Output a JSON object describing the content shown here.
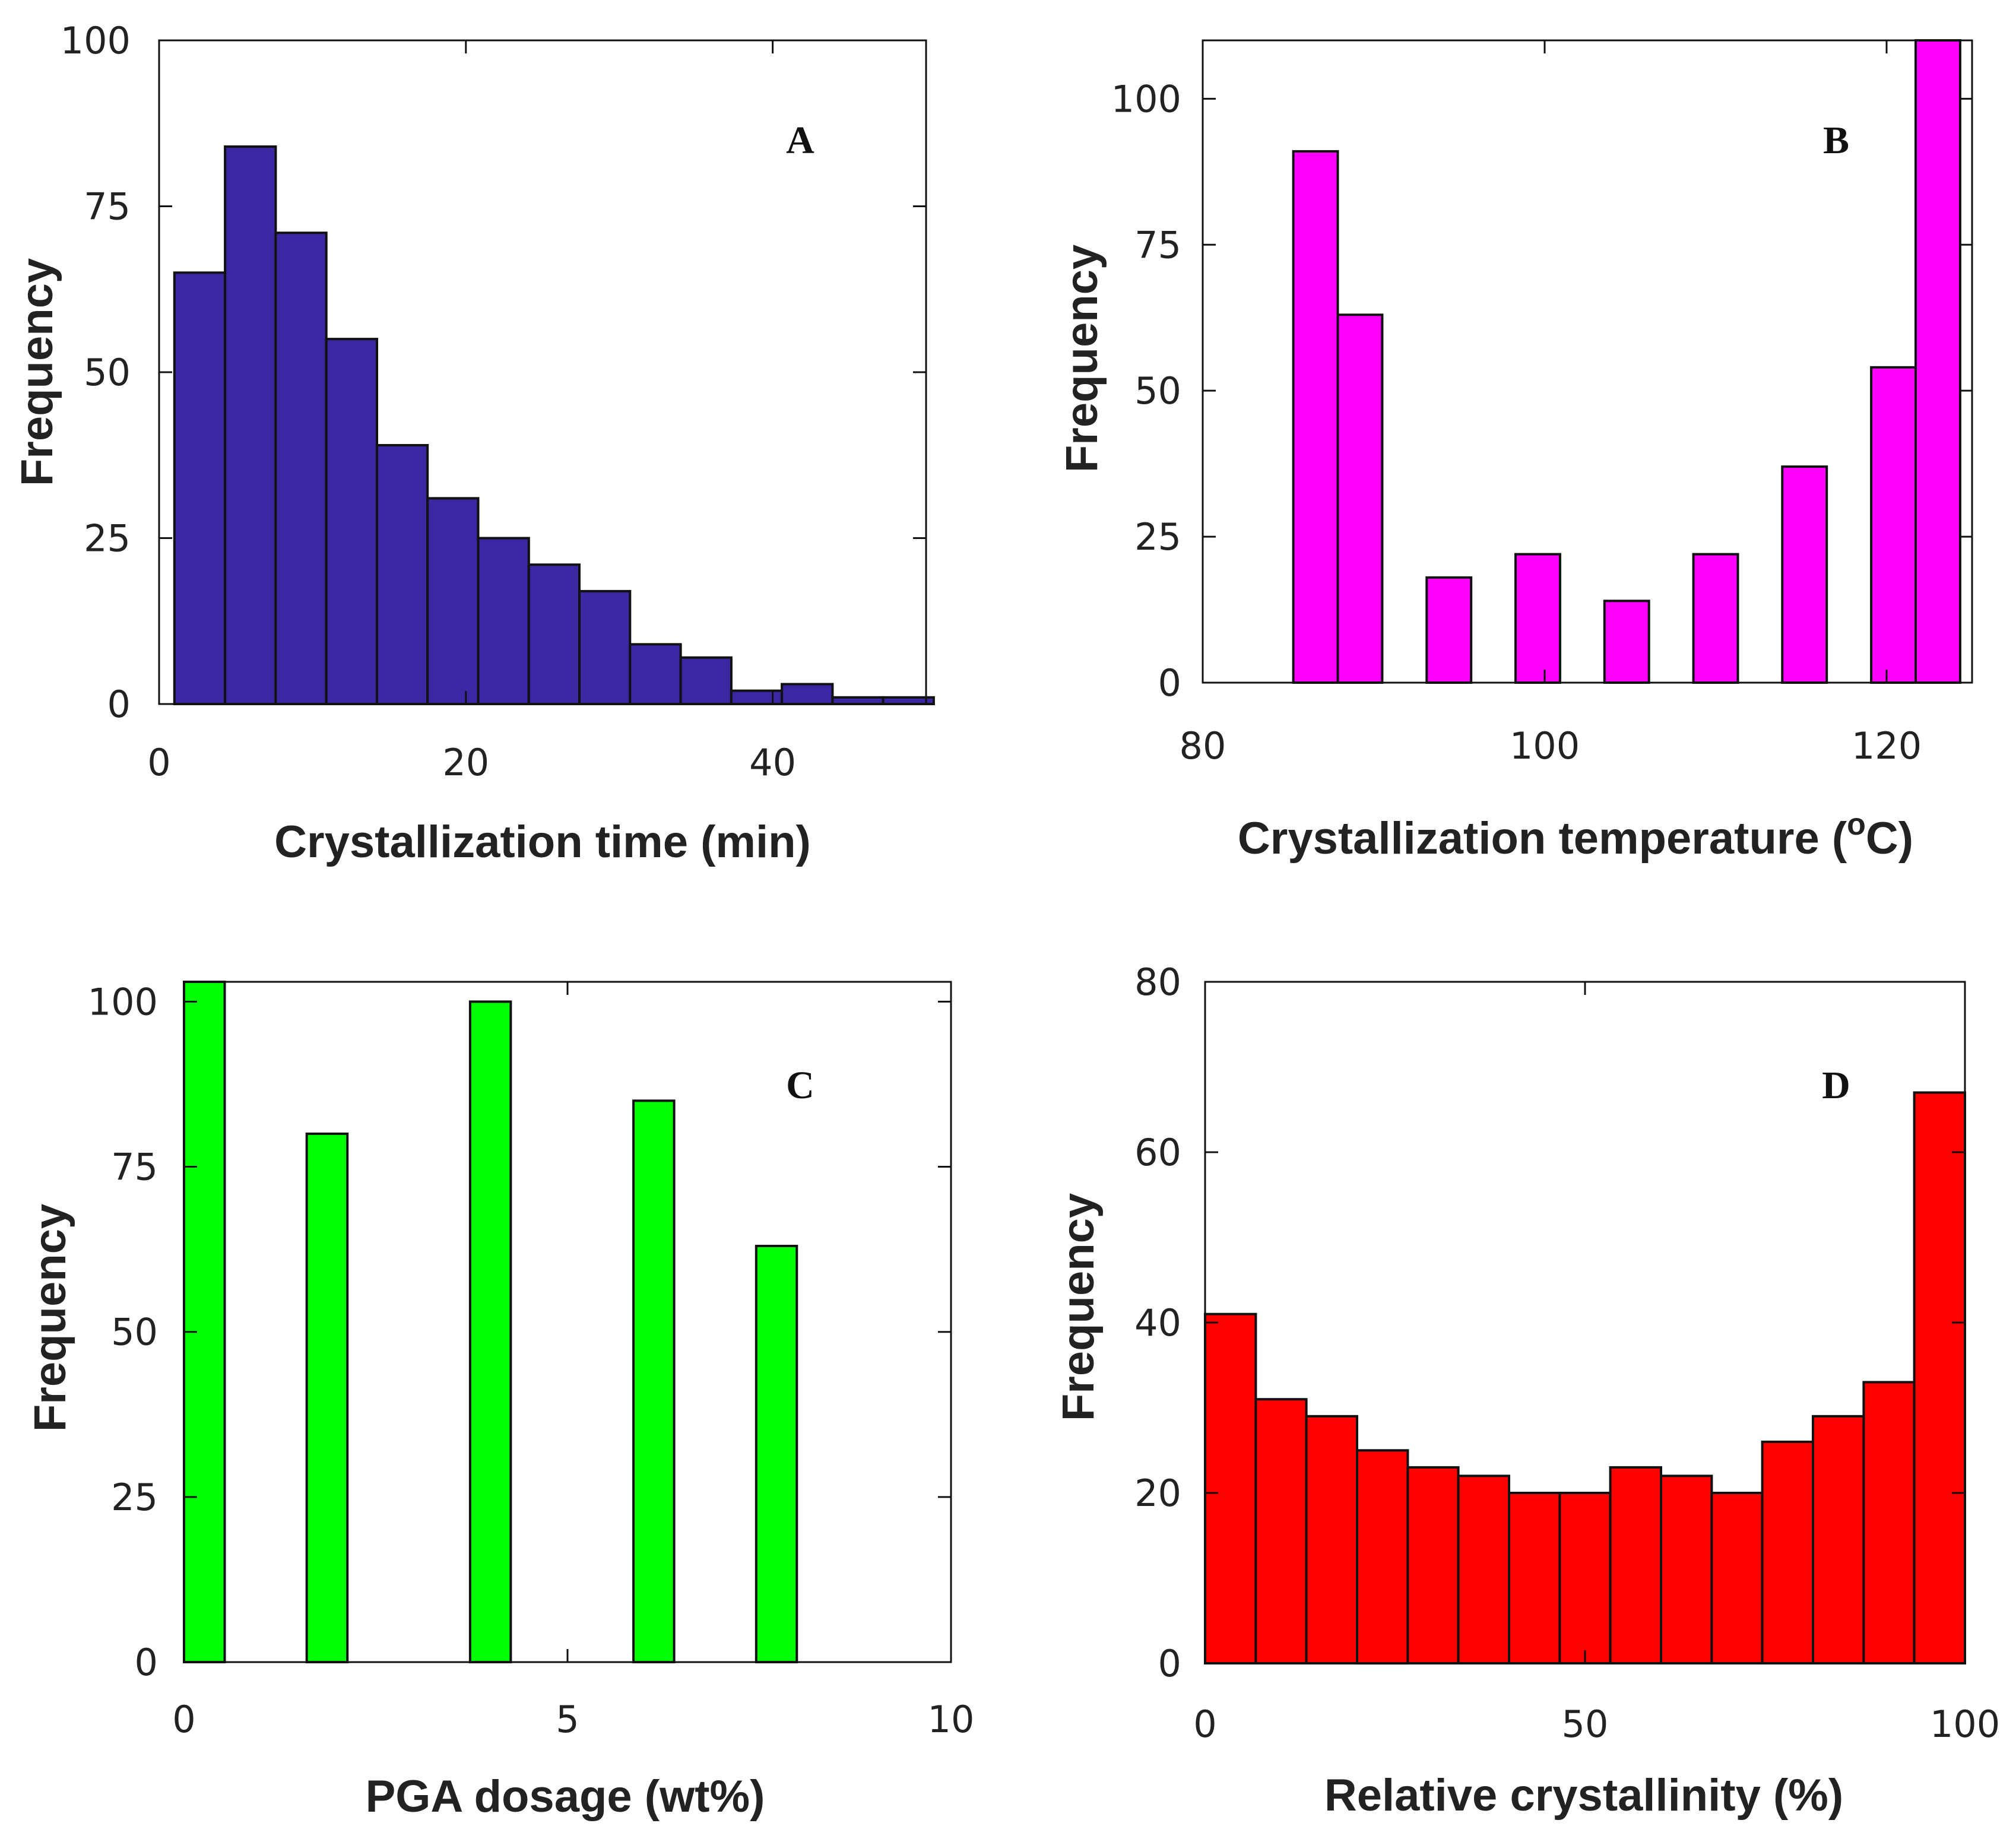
{
  "chart_data": [
    {
      "id": "A",
      "type": "bar",
      "panel_label": "A",
      "color": "#3b27a2",
      "xlabel": "Crystallization time (min)",
      "ylabel": "Frequency",
      "xlim": [
        0,
        50
      ],
      "ylim": [
        0,
        100
      ],
      "xticks": [
        0,
        20,
        40
      ],
      "yticks": [
        0,
        25,
        50,
        75,
        100
      ],
      "bins": [
        {
          "x0": 1.0,
          "x1": 4.3,
          "value": 65
        },
        {
          "x0": 4.3,
          "x1": 7.6,
          "value": 84
        },
        {
          "x0": 7.6,
          "x1": 10.9,
          "value": 71
        },
        {
          "x0": 10.9,
          "x1": 14.2,
          "value": 55
        },
        {
          "x0": 14.2,
          "x1": 17.5,
          "value": 39
        },
        {
          "x0": 17.5,
          "x1": 20.8,
          "value": 31
        },
        {
          "x0": 20.8,
          "x1": 24.1,
          "value": 25
        },
        {
          "x0": 24.1,
          "x1": 27.4,
          "value": 21
        },
        {
          "x0": 27.4,
          "x1": 30.7,
          "value": 17
        },
        {
          "x0": 30.7,
          "x1": 34.0,
          "value": 9
        },
        {
          "x0": 34.0,
          "x1": 37.3,
          "value": 7
        },
        {
          "x0": 37.3,
          "x1": 40.6,
          "value": 2
        },
        {
          "x0": 40.6,
          "x1": 43.9,
          "value": 3
        },
        {
          "x0": 43.9,
          "x1": 47.2,
          "value": 1
        },
        {
          "x0": 47.2,
          "x1": 50.5,
          "value": 1
        }
      ]
    },
    {
      "id": "B",
      "type": "bar",
      "panel_label": "B",
      "color": "#ff00ff",
      "xlabel": "Crystallization temperature (",
      "xlabel_sup": "o",
      "xlabel_suffix": "C)",
      "ylabel": "Frequency",
      "xlim": [
        80,
        125
      ],
      "ylim": [
        0,
        110
      ],
      "xticks": [
        80,
        100,
        120
      ],
      "yticks": [
        0,
        25,
        50,
        75,
        100
      ],
      "bins": [
        {
          "x0": 85.3,
          "x1": 87.9,
          "value": 91
        },
        {
          "x0": 87.9,
          "x1": 90.5,
          "value": 63
        },
        {
          "x0": 93.1,
          "x1": 95.7,
          "value": 18
        },
        {
          "x0": 98.3,
          "x1": 100.9,
          "value": 22
        },
        {
          "x0": 103.5,
          "x1": 106.1,
          "value": 14
        },
        {
          "x0": 108.7,
          "x1": 111.3,
          "value": 22
        },
        {
          "x0": 113.9,
          "x1": 116.5,
          "value": 37
        },
        {
          "x0": 119.1,
          "x1": 121.7,
          "value": 54
        },
        {
          "x0": 121.7,
          "x1": 124.3,
          "value": 110
        }
      ]
    },
    {
      "id": "C",
      "type": "bar",
      "panel_label": "C",
      "color": "#00ff00",
      "xlabel": "PGA dosage (wt%)",
      "ylabel": "Frequency",
      "xlim": [
        0,
        10
      ],
      "ylim": [
        0,
        103
      ],
      "xticks": [
        0,
        5,
        10
      ],
      "yticks": [
        0,
        25,
        50,
        75,
        100
      ],
      "bins": [
        {
          "x0": 0.0,
          "x1": 0.53,
          "value": 103
        },
        {
          "x0": 1.6,
          "x1": 2.13,
          "value": 80
        },
        {
          "x0": 3.73,
          "x1": 4.26,
          "value": 100
        },
        {
          "x0": 5.86,
          "x1": 6.39,
          "value": 85
        },
        {
          "x0": 7.46,
          "x1": 7.99,
          "value": 63
        }
      ]
    },
    {
      "id": "D",
      "type": "bar",
      "panel_label": "D",
      "color": "#ff0000",
      "xlabel": "Relative crystallinity (%)",
      "ylabel": "Frequency",
      "xlim": [
        0,
        100
      ],
      "ylim": [
        0,
        80
      ],
      "xticks": [
        0,
        50,
        100
      ],
      "yticks": [
        0,
        20,
        40,
        60,
        80
      ],
      "bins": [
        {
          "x0": 0.0,
          "x1": 6.67,
          "value": 41
        },
        {
          "x0": 6.67,
          "x1": 13.33,
          "value": 31
        },
        {
          "x0": 13.33,
          "x1": 20.0,
          "value": 29
        },
        {
          "x0": 20.0,
          "x1": 26.67,
          "value": 25
        },
        {
          "x0": 26.67,
          "x1": 33.33,
          "value": 23
        },
        {
          "x0": 33.33,
          "x1": 40.0,
          "value": 22
        },
        {
          "x0": 40.0,
          "x1": 46.67,
          "value": 20
        },
        {
          "x0": 46.67,
          "x1": 53.33,
          "value": 20
        },
        {
          "x0": 53.33,
          "x1": 60.0,
          "value": 23
        },
        {
          "x0": 60.0,
          "x1": 66.67,
          "value": 22
        },
        {
          "x0": 66.67,
          "x1": 73.33,
          "value": 20
        },
        {
          "x0": 73.33,
          "x1": 80.0,
          "value": 26
        },
        {
          "x0": 80.0,
          "x1": 86.67,
          "value": 29
        },
        {
          "x0": 86.67,
          "x1": 93.33,
          "value": 33
        },
        {
          "x0": 93.33,
          "x1": 100.0,
          "value": 67
        }
      ]
    }
  ]
}
